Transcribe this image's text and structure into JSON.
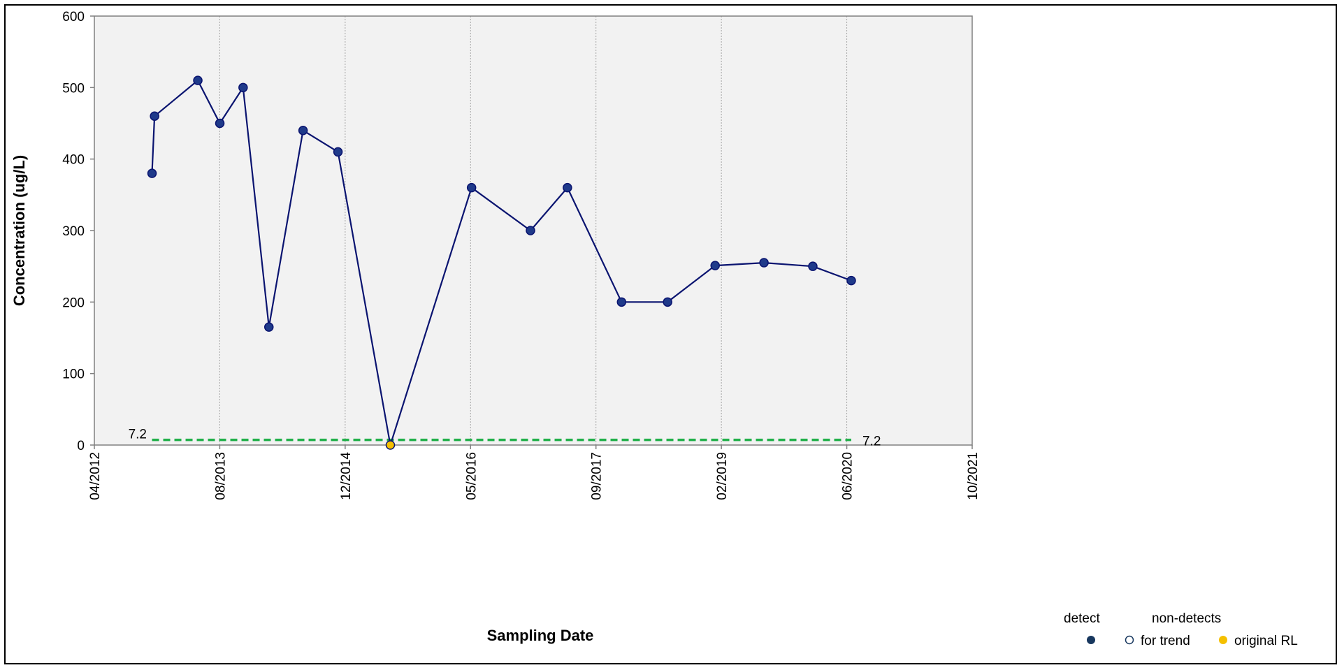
{
  "chart_data": {
    "type": "line",
    "title": "",
    "xlabel": "Sampling Date",
    "ylabel": "Concentration (ug/L)",
    "ylim": [
      0,
      600
    ],
    "yticks": [
      "0",
      "100",
      "200",
      "300",
      "400",
      "500",
      "600"
    ],
    "xlim": [
      "2012-04",
      "2021-10"
    ],
    "xticks": [
      "04/2012",
      "08/2013",
      "12/2014",
      "05/2016",
      "09/2017",
      "02/2019",
      "06/2020",
      "10/2021"
    ],
    "grid": "vertical",
    "series": [
      {
        "points": [
          {
            "x": "2012-11-15",
            "y": 380,
            "type": "detect"
          },
          {
            "x": "2012-11-25",
            "y": 460,
            "type": "detect"
          },
          {
            "x": "2013-05-15",
            "y": 510,
            "type": "detect"
          },
          {
            "x": "2013-08-10",
            "y": 450,
            "type": "detect"
          },
          {
            "x": "2013-11-10",
            "y": 500,
            "type": "detect"
          },
          {
            "x": "2014-02-20",
            "y": 165,
            "type": "detect"
          },
          {
            "x": "2014-07-05",
            "y": 440,
            "type": "detect"
          },
          {
            "x": "2014-11-20",
            "y": 410,
            "type": "detect"
          },
          {
            "x": "2015-06-15",
            "y": 0,
            "type": "original RL"
          },
          {
            "x": "2016-05-01",
            "y": 360,
            "type": "detect"
          },
          {
            "x": "2016-12-20",
            "y": 300,
            "type": "detect"
          },
          {
            "x": "2017-05-15",
            "y": 360,
            "type": "detect"
          },
          {
            "x": "2017-12-15",
            "y": 200,
            "type": "detect"
          },
          {
            "x": "2018-06-15",
            "y": 200,
            "type": "detect"
          },
          {
            "x": "2018-12-20",
            "y": 251,
            "type": "detect"
          },
          {
            "x": "2019-07-01",
            "y": 255,
            "type": "detect"
          },
          {
            "x": "2020-01-10",
            "y": 250,
            "type": "detect"
          },
          {
            "x": "2020-06-10",
            "y": 230,
            "type": "detect"
          }
        ]
      }
    ],
    "reference_line": {
      "value": 7.2,
      "x_start": "2012-11-15",
      "x_end": "2020-06-10",
      "label_left": "7.2",
      "label_right": "7.2"
    },
    "legend": {
      "position": "bottom-right",
      "detect_heading": "detect",
      "nondetect_heading": "non-detects",
      "items": [
        {
          "label": "",
          "symbol": "filled-circle"
        },
        {
          "label": "for trend",
          "symbol": "open-circle"
        },
        {
          "label": "original RL",
          "symbol": "yellow-circle"
        }
      ]
    },
    "colors": {
      "line": "#0a1470",
      "marker_fill": "#1f3a8a",
      "marker_edge": "#0a1470",
      "nondetect_rl": "#f5c000",
      "reference": "#22b04b",
      "plot_bg": "#f2f2f2",
      "legend_detect": "#17375e",
      "for_trend_text": "#17375e"
    }
  }
}
